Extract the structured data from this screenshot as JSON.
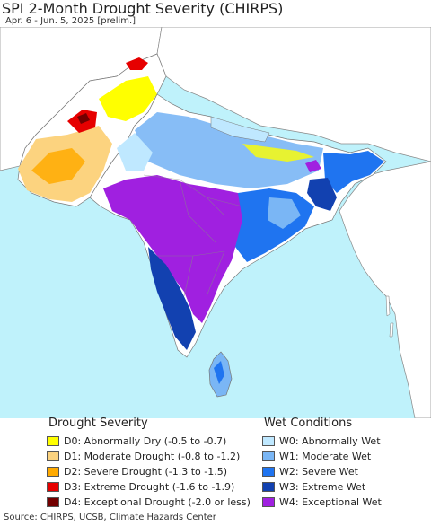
{
  "title": "SPI 2-Month Drought Severity (CHIRPS)",
  "subtitle": "Apr. 6 - Jun. 5, 2025 [prelim.]",
  "legend": {
    "drought": {
      "heading": "Drought Severity",
      "items": [
        {
          "code": "D0",
          "label": "D0: Abnormally Dry (-0.5 to -0.7)",
          "color": "#ffff00"
        },
        {
          "code": "D1",
          "label": "D1: Moderate Drought (-0.8 to -1.2)",
          "color": "#fcd37f"
        },
        {
          "code": "D2",
          "label": "D2: Severe Drought (-1.3 to -1.5)",
          "color": "#ffaa00"
        },
        {
          "code": "D3",
          "label": "D3: Extreme Drought (-1.6 to -1.9)",
          "color": "#e60000"
        },
        {
          "code": "D4",
          "label": "D4: Exceptional Drought (-2.0 or less)",
          "color": "#730000"
        }
      ]
    },
    "wet": {
      "heading": "Wet Conditions",
      "items": [
        {
          "code": "W0",
          "label": "W0: Abnormally Wet",
          "color": "#bfe8ff"
        },
        {
          "code": "W1",
          "label": "W1: Moderate Wet",
          "color": "#7ab6f5"
        },
        {
          "code": "W2",
          "label": "W2: Severe Wet",
          "color": "#1f74f0"
        },
        {
          "code": "W3",
          "label": "W3: Extreme Wet",
          "color": "#1241b0"
        },
        {
          "code": "W4",
          "label": "W4: Exceptional Wet",
          "color": "#a020e0"
        }
      ]
    }
  },
  "colors": {
    "ocean": "#bff2fb",
    "land_neutral": "#ffffff",
    "border": "#777777"
  },
  "source": "Source: CHIRPS, UCSB, Climate Hazards Center"
}
